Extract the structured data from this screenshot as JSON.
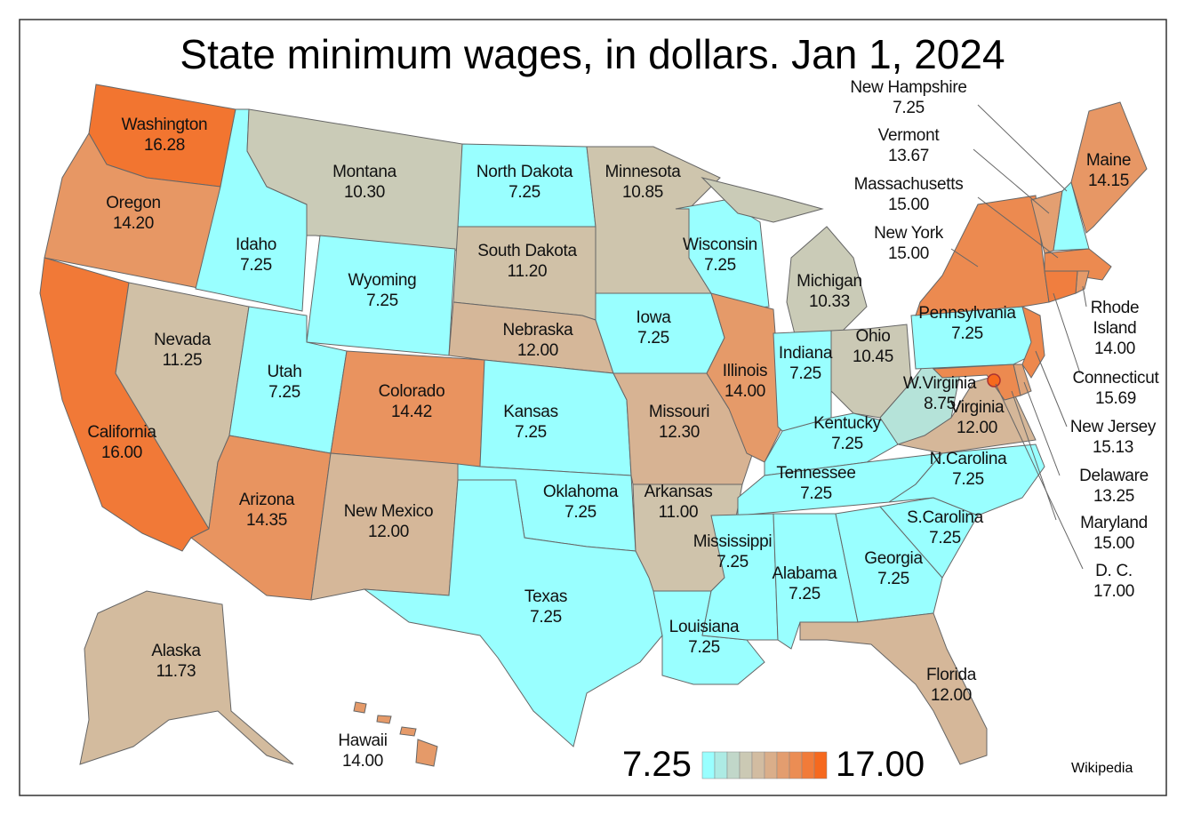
{
  "chart_data": {
    "type": "choropleth",
    "title": "State minimum wages, in dollars. Jan 1, 2024",
    "categories": [
      "Washington",
      "Oregon",
      "California",
      "Nevada",
      "Idaho",
      "Montana",
      "Wyoming",
      "Utah",
      "Colorado",
      "Arizona",
      "New Mexico",
      "North Dakota",
      "South Dakota",
      "Nebraska",
      "Kansas",
      "Oklahoma",
      "Texas",
      "Minnesota",
      "Iowa",
      "Missouri",
      "Arkansas",
      "Louisiana",
      "Wisconsin",
      "Illinois",
      "Michigan",
      "Indiana",
      "Ohio",
      "Kentucky",
      "Tennessee",
      "Mississippi",
      "Alabama",
      "Georgia",
      "Florida",
      "S.Carolina",
      "N.Carolina",
      "Virginia",
      "W.Virginia",
      "Pennsylvania",
      "New York",
      "Vermont",
      "New Hampshire",
      "Maine",
      "Massachusetts",
      "Rhode Island",
      "Connecticut",
      "New Jersey",
      "Delaware",
      "Maryland",
      "D. C.",
      "Alaska",
      "Hawaii"
    ],
    "values": [
      16.28,
      14.2,
      16,
      11.25,
      7.25,
      10.3,
      7.25,
      7.25,
      14.42,
      14.35,
      12,
      7.25,
      11.2,
      12,
      7.25,
      7.25,
      7.25,
      10.85,
      7.25,
      12.3,
      11,
      7.25,
      7.25,
      14,
      10.33,
      7.25,
      10.45,
      7.25,
      7.25,
      7.25,
      7.25,
      7.25,
      12,
      7.25,
      7.25,
      12,
      8.75,
      7.25,
      15,
      13.67,
      7.25,
      14.15,
      15,
      14,
      15.69,
      15.13,
      13.25,
      15,
      17,
      11.73,
      14
    ],
    "value_labels": [
      "16.28",
      "14.20",
      "16.00",
      "11.25",
      "7.25",
      "10.30",
      "7.25",
      "7.25",
      "14.42",
      "14.35",
      "12.00",
      "7.25",
      "11.20",
      "12.00",
      "7.25",
      "7.25",
      "7.25",
      "10.85",
      "7.25",
      "12.30",
      "11.00",
      "7.25",
      "7.25",
      "14.00",
      "10.33",
      "7.25",
      "10.45",
      "7.25",
      "7.25",
      "7.25",
      "7.25",
      "7.25",
      "12.00",
      "7.25",
      "7.25",
      "12.00",
      "8.75",
      "7.25",
      "15.00",
      "13.67",
      "7.25",
      "14.15",
      "15.00",
      "14.00",
      "15.69",
      "15.13",
      "13.25",
      "15.00",
      "17.00",
      "11.73",
      "14.00"
    ],
    "colorbar": {
      "min": {
        "value": 7.25,
        "label": "7.25"
      },
      "max": {
        "value": 17,
        "label": "17.00"
      },
      "colors": [
        "#99ffff",
        "#c6d2c2",
        "#d6b697",
        "#ea915b",
        "#f6691e"
      ]
    },
    "source": "Wikipedia"
  }
}
